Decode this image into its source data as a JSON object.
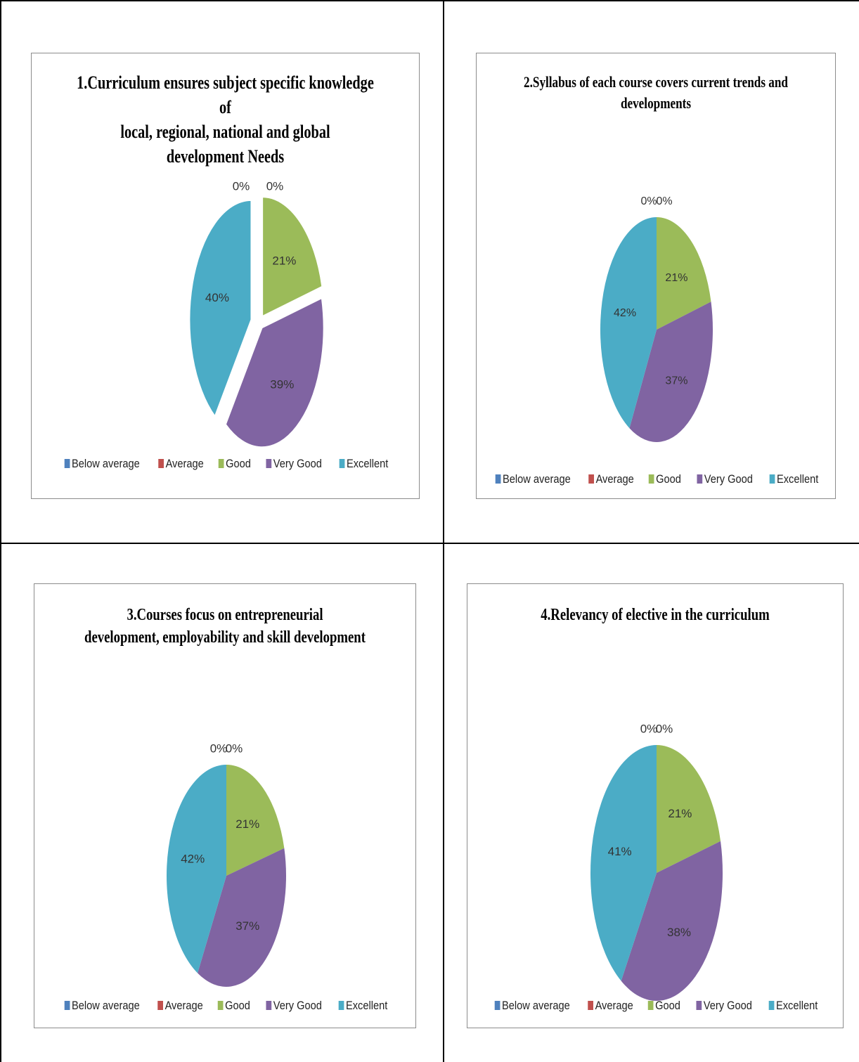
{
  "chart_data": [
    {
      "type": "pie",
      "title": "1.Curriculum ensures subject specific knowledge of local, regional, national and global development Needs",
      "title_lines": [
        "1.Curriculum ensures subject specific knowledge of",
        "local, regional, national and global",
        "development Needs"
      ],
      "categories": [
        "Below average",
        "Average",
        "Good",
        "Very Good",
        "Excellent"
      ],
      "values": [
        0,
        0,
        21,
        39,
        40
      ],
      "labels": [
        "0%",
        "0%",
        "21%",
        "39%",
        "40%"
      ],
      "exploded": true,
      "legend_position": "bottom"
    },
    {
      "type": "pie",
      "title": "2.Syllabus of each course covers current trends and developments",
      "title_lines": [
        "2.Syllabus of each course covers current trends and",
        "developments"
      ],
      "categories": [
        "Below average",
        "Average",
        "Good",
        "Very Good",
        "Excellent"
      ],
      "values": [
        0,
        0,
        21,
        37,
        42
      ],
      "labels": [
        "0%",
        "0%",
        "21%",
        "37%",
        "42%"
      ],
      "exploded": false,
      "legend_position": "bottom"
    },
    {
      "type": "pie",
      "title": "3.Courses focus on entrepreneurial development, employability and skill development",
      "title_lines": [
        "3.Courses focus on entrepreneurial",
        "development, employability and skill development"
      ],
      "categories": [
        "Below average",
        "Average",
        "Good",
        "Very Good",
        "Excellent"
      ],
      "values": [
        0,
        0,
        21,
        37,
        42
      ],
      "labels": [
        "0%",
        "0%",
        "21%",
        "37%",
        "42%"
      ],
      "exploded": false,
      "legend_position": "bottom"
    },
    {
      "type": "pie",
      "title": "4.Relevancy of elective in the curriculum",
      "title_lines": [
        "4.Relevancy of elective in the curriculum"
      ],
      "categories": [
        "Below average",
        "Average",
        "Good",
        "Very Good",
        "Excellent"
      ],
      "values": [
        0,
        0,
        21,
        38,
        41
      ],
      "labels": [
        "0%",
        "0%",
        "21%",
        "38%",
        "41%"
      ],
      "exploded": false,
      "legend_position": "bottom"
    }
  ],
  "colors": {
    "Below average": "#4f81bd",
    "Average": "#c0504d",
    "Good": "#9bbb59",
    "Very Good": "#8064a2",
    "Excellent": "#4bacc6"
  }
}
